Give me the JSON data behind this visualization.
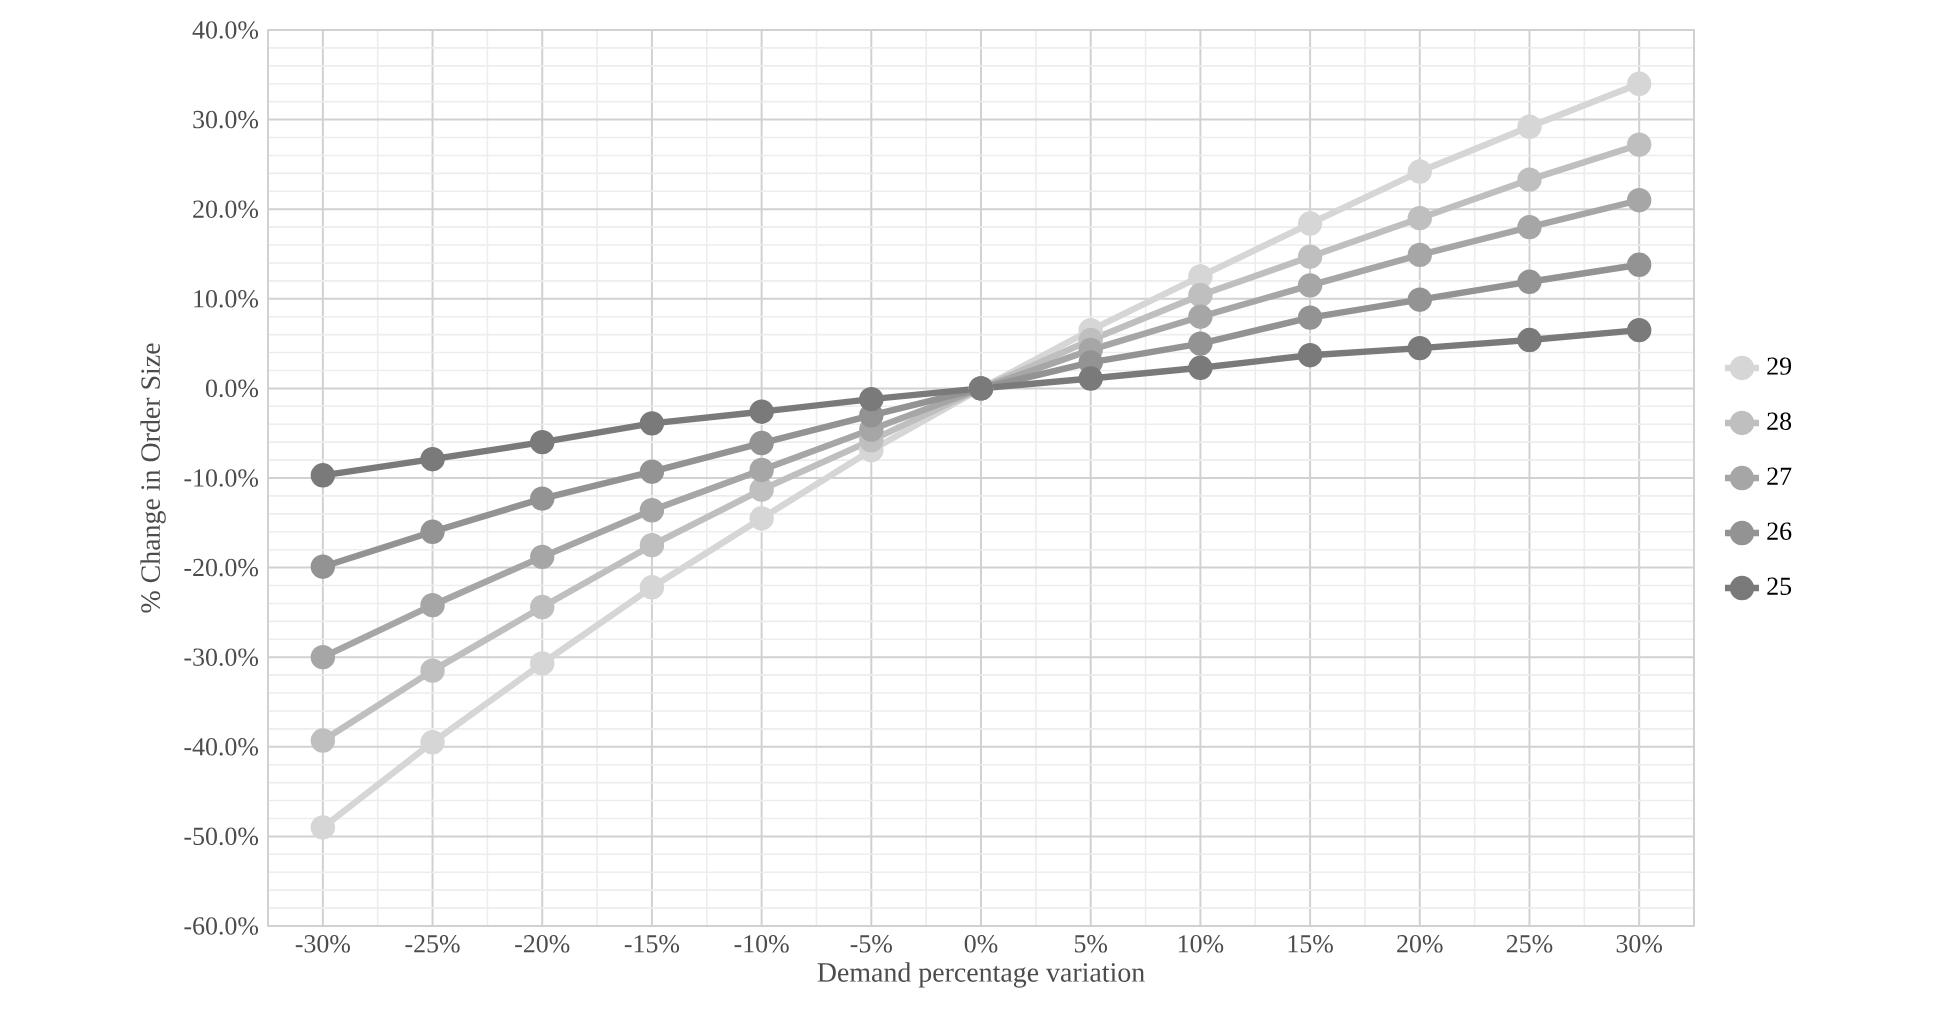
{
  "chart_data": {
    "type": "line",
    "xlabel": "Demand percentage variation",
    "ylabel": "% Change in Order Size",
    "categories": [
      "-30%",
      "-25%",
      "-20%",
      "-15%",
      "-10%",
      "-5%",
      "0%",
      "5%",
      "10%",
      "15%",
      "20%",
      "25%",
      "30%"
    ],
    "series": [
      {
        "name": "29",
        "color": "#d6d6d6",
        "values": [
          -49.0,
          -39.5,
          -30.7,
          -22.2,
          -14.5,
          -6.9,
          0,
          6.5,
          12.5,
          18.4,
          24.2,
          29.2,
          34.0
        ]
      },
      {
        "name": "28",
        "color": "#bfbfbf",
        "values": [
          -39.3,
          -31.5,
          -24.4,
          -17.5,
          -11.3,
          -5.8,
          0,
          5.4,
          10.4,
          14.7,
          19.0,
          23.3,
          27.2
        ]
      },
      {
        "name": "27",
        "color": "#a6a6a6",
        "values": [
          -30.0,
          -24.2,
          -18.8,
          -13.6,
          -9.1,
          -4.6,
          0,
          4.3,
          8.0,
          11.5,
          14.9,
          18.0,
          21.0
        ]
      },
      {
        "name": "26",
        "color": "#939393",
        "values": [
          -19.9,
          -16.0,
          -12.3,
          -9.3,
          -6.1,
          -3.0,
          0,
          2.9,
          5.0,
          7.9,
          9.9,
          11.9,
          13.8
        ]
      },
      {
        "name": "25",
        "color": "#7a7a7a",
        "values": [
          -9.7,
          -7.9,
          -6.0,
          -3.9,
          -2.6,
          -1.2,
          0,
          1.1,
          2.3,
          3.7,
          4.5,
          5.4,
          6.5
        ]
      }
    ],
    "ylim": [
      -60,
      40
    ],
    "yticks": [
      {
        "value": -60,
        "label": "-60.0%"
      },
      {
        "value": -50,
        "label": "-50.0%"
      },
      {
        "value": -40,
        "label": "-40.0%"
      },
      {
        "value": -30,
        "label": "-30.0%"
      },
      {
        "value": -20,
        "label": "-20.0%"
      },
      {
        "value": -10,
        "label": "-10.0%"
      },
      {
        "value": 0,
        "label": "0.0%"
      },
      {
        "value": 10,
        "label": "10.0%"
      },
      {
        "value": 20,
        "label": "20.0%"
      },
      {
        "value": 30,
        "label": "30.0%"
      },
      {
        "value": 40,
        "label": "40.0%"
      }
    ],
    "grid": true,
    "legend": "right",
    "marker": "circle",
    "line_style": "solid"
  }
}
